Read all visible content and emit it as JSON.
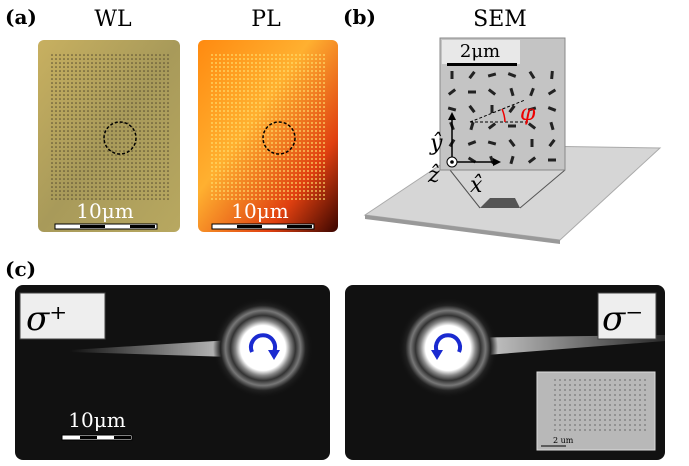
{
  "panel_a": {
    "label": "(a)",
    "wl": {
      "title": "WL",
      "scale": "10μm"
    },
    "pl": {
      "title": "PL",
      "scale": "10μm"
    }
  },
  "panel_b": {
    "label": "(b)",
    "title": "SEM",
    "scale": "2μm",
    "axis_y": "ŷ",
    "axis_z": "ẑ",
    "axis_x": "x̂",
    "angle": "φ"
  },
  "panel_c": {
    "label": "(c)",
    "left": {
      "polarization": "σ⁺",
      "scale": "10μm"
    },
    "right": {
      "polarization": "σ⁻",
      "inset_scale": "2 um"
    }
  }
}
